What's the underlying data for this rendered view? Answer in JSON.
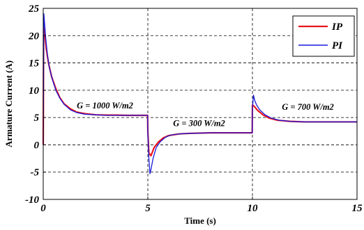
{
  "chart_data": {
    "type": "line",
    "title": "",
    "xlabel": "Time (s)",
    "ylabel": "Armature Current (A)",
    "xlim": [
      0,
      15
    ],
    "ylim": [
      -10,
      25
    ],
    "x_ticks": [
      0,
      5,
      10,
      15
    ],
    "y_ticks": [
      -10,
      -5,
      0,
      5,
      10,
      15,
      20,
      25
    ],
    "x_tick_labels": [
      "0",
      "5",
      "10",
      "15"
    ],
    "y_tick_labels": [
      "-10",
      "-5",
      "0",
      "5",
      "10",
      "15",
      "20",
      "25"
    ],
    "grid": true,
    "legend_position": "top-right",
    "series": [
      {
        "name": "IP",
        "color": "#e8141c",
        "x": [
          0,
          0.02,
          0.08,
          0.15,
          0.25,
          0.4,
          0.6,
          0.8,
          1.0,
          1.3,
          1.6,
          2.0,
          2.5,
          3.0,
          3.5,
          4.0,
          4.5,
          4.99,
          5.0,
          5.05,
          5.15,
          5.3,
          5.5,
          5.75,
          6.0,
          6.5,
          7.0,
          8.0,
          9.0,
          9.99,
          10.0,
          10.1,
          10.25,
          10.5,
          10.8,
          11.2,
          11.8,
          12.5,
          13.5,
          15.0
        ],
        "y": [
          0,
          21.5,
          20.0,
          17.5,
          15.0,
          12.5,
          10.3,
          8.6,
          7.5,
          6.6,
          6.0,
          5.7,
          5.5,
          5.45,
          5.45,
          5.4,
          5.4,
          5.4,
          2.5,
          -1.5,
          -2.0,
          -0.5,
          0.5,
          1.3,
          1.7,
          2.0,
          2.1,
          2.2,
          2.2,
          2.2,
          7.3,
          7.0,
          6.3,
          5.5,
          4.9,
          4.5,
          4.3,
          4.2,
          4.2,
          4.2
        ]
      },
      {
        "name": "PI",
        "color": "#1a1adc",
        "x": [
          0,
          0.03,
          0.06,
          0.12,
          0.2,
          0.3,
          0.45,
          0.6,
          0.8,
          1.0,
          1.3,
          1.6,
          2.0,
          2.5,
          3.0,
          3.5,
          4.0,
          4.5,
          4.99,
          5.0,
          5.05,
          5.1,
          5.15,
          5.25,
          5.4,
          5.6,
          5.85,
          6.1,
          6.5,
          7.0,
          8.0,
          9.0,
          9.99,
          10.0,
          10.05,
          10.12,
          10.2,
          10.35,
          10.6,
          10.9,
          11.3,
          11.8,
          12.5,
          13.5,
          15.0
        ],
        "y": [
          0,
          24.0,
          22.5,
          19.5,
          16.5,
          14.0,
          11.8,
          10.0,
          8.5,
          7.4,
          6.4,
          5.9,
          5.6,
          5.5,
          5.4,
          5.4,
          5.4,
          5.4,
          5.4,
          2.0,
          -2.5,
          -5.3,
          -4.5,
          -2.5,
          -0.5,
          0.6,
          1.4,
          1.8,
          2.0,
          2.1,
          2.2,
          2.2,
          2.2,
          6.5,
          9.1,
          8.0,
          7.3,
          6.4,
          5.5,
          4.9,
          4.5,
          4.3,
          4.2,
          4.2,
          4.2
        ]
      }
    ],
    "annotations": [
      {
        "text": "G = 1000 W/m2",
        "x": 2.95,
        "y": 6.7
      },
      {
        "text": "G = 300 W/m2",
        "x": 7.45,
        "y": 3.4
      },
      {
        "text": "G = 700 W/m2",
        "x": 12.65,
        "y": 6.4
      }
    ]
  }
}
